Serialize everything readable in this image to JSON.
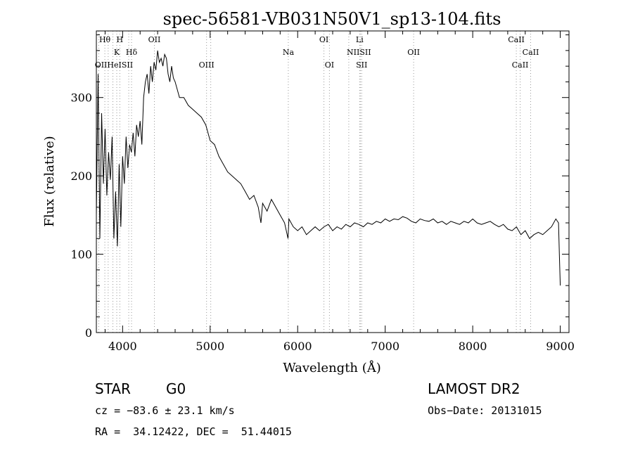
{
  "chart_data": {
    "type": "line",
    "title": "spec-56581-VB031N50V1_sp13-104.fits",
    "xlabel": "Wavelength (Å)",
    "ylabel": "Flux (relative)",
    "xlim": [
      3700,
      9100
    ],
    "ylim": [
      0,
      385
    ],
    "xticks": [
      4000,
      5000,
      6000,
      7000,
      8000,
      9000
    ],
    "yticks": [
      0,
      100,
      200,
      300
    ],
    "grid": false,
    "series": [
      {
        "x": [
          3700,
          3720,
          3740,
          3760,
          3780,
          3800,
          3820,
          3840,
          3860,
          3880,
          3900,
          3920,
          3940,
          3960,
          3980,
          4000,
          4020,
          4040,
          4060,
          4080,
          4100,
          4120,
          4140,
          4160,
          4180,
          4200,
          4220,
          4240,
          4260,
          4280,
          4300,
          4320,
          4340,
          4360,
          4380,
          4400,
          4420,
          4440,
          4460,
          4480,
          4500,
          4520,
          4540,
          4560,
          4580,
          4600,
          4650,
          4700,
          4750,
          4800,
          4850,
          4900,
          4950,
          5000,
          5050,
          5100,
          5150,
          5200,
          5250,
          5300,
          5350,
          5400,
          5450,
          5500,
          5550,
          5580,
          5600,
          5650,
          5700,
          5750,
          5800,
          5850,
          5890,
          5900,
          5950,
          6000,
          6050,
          6100,
          6150,
          6200,
          6250,
          6300,
          6350,
          6400,
          6450,
          6500,
          6550,
          6600,
          6650,
          6700,
          6750,
          6800,
          6850,
          6900,
          6950,
          7000,
          7050,
          7100,
          7150,
          7200,
          7250,
          7300,
          7350,
          7400,
          7450,
          7500,
          7550,
          7600,
          7650,
          7700,
          7750,
          7800,
          7850,
          7900,
          7950,
          8000,
          8050,
          8100,
          8150,
          8200,
          8250,
          8300,
          8350,
          8400,
          8450,
          8500,
          8550,
          8600,
          8650,
          8700,
          8750,
          8800,
          8850,
          8900,
          8950,
          8980,
          8990,
          9000
        ],
        "values": [
          150,
          330,
          120,
          280,
          190,
          260,
          175,
          230,
          195,
          250,
          120,
          180,
          110,
          215,
          135,
          225,
          190,
          250,
          210,
          240,
          230,
          255,
          225,
          265,
          250,
          270,
          240,
          300,
          320,
          330,
          305,
          340,
          320,
          345,
          335,
          360,
          345,
          350,
          340,
          355,
          350,
          330,
          320,
          340,
          325,
          320,
          300,
          300,
          290,
          285,
          280,
          275,
          265,
          245,
          240,
          225,
          215,
          205,
          200,
          195,
          190,
          180,
          170,
          175,
          160,
          140,
          165,
          155,
          170,
          160,
          150,
          140,
          120,
          145,
          135,
          130,
          135,
          125,
          130,
          135,
          130,
          135,
          138,
          130,
          135,
          132,
          138,
          135,
          140,
          138,
          135,
          140,
          138,
          142,
          140,
          145,
          142,
          145,
          144,
          148,
          146,
          142,
          140,
          145,
          143,
          142,
          145,
          140,
          142,
          138,
          142,
          140,
          138,
          142,
          140,
          145,
          140,
          138,
          140,
          142,
          138,
          135,
          138,
          132,
          130,
          135,
          125,
          130,
          120,
          125,
          128,
          125,
          130,
          135,
          145,
          140,
          100,
          60
        ]
      }
    ],
    "spectral_lines": [
      {
        "label": "Hθ",
        "x": 3797,
        "row": 1
      },
      {
        "label": "H",
        "x": 3968,
        "row": 1
      },
      {
        "label": "OII",
        "x": 4363,
        "row": 1
      },
      {
        "label": "OI",
        "x": 6300,
        "row": 1
      },
      {
        "label": "Li",
        "x": 6708,
        "row": 1
      },
      {
        "label": "CaII",
        "x": 8498,
        "row": 1
      },
      {
        "label": "K",
        "x": 3933,
        "row": 2
      },
      {
        "label": "Hδ",
        "x": 4102,
        "row": 2
      },
      {
        "label": "Na",
        "x": 5893,
        "row": 2
      },
      {
        "label": "NIISII",
        "x": 6700,
        "row": 2
      },
      {
        "label": "OII",
        "x": 7325,
        "row": 2
      },
      {
        "label": "CaII",
        "x": 8662,
        "row": 2
      },
      {
        "label": "OIIHeISII",
        "x": 3900,
        "row": 3
      },
      {
        "label": "OIII",
        "x": 4959,
        "row": 3
      },
      {
        "label": "OI",
        "x": 6363,
        "row": 3
      },
      {
        "label": "SII",
        "x": 6731,
        "row": 3
      },
      {
        "label": "CaII",
        "x": 8542,
        "row": 3
      }
    ],
    "marker_lines": [
      3727,
      3797,
      3835,
      3889,
      3933,
      3968,
      4070,
      4102,
      4363,
      4959,
      5007,
      5893,
      6300,
      6363,
      6584,
      6708,
      6716,
      6731,
      7325,
      8498,
      8542,
      8662
    ]
  },
  "info": {
    "class": "STAR",
    "subclass": "G0",
    "survey": "LAMOST DR2",
    "cz": "cz = −83.6 ± 23.1 km/s",
    "obs_date": "Obs−Date: 20131015",
    "coords": "RA =  34.12422, DEC =  51.44015"
  }
}
